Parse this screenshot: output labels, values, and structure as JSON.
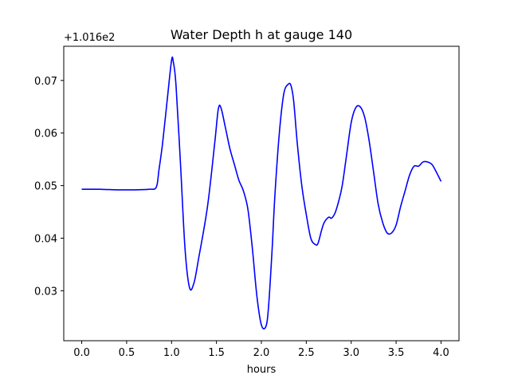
{
  "chart_data": {
    "type": "line",
    "title": "Water Depth h at gauge 140",
    "xlabel": "hours",
    "ylabel": "",
    "offset_label": "+1.016e2",
    "xlim": [
      -0.2,
      4.2
    ],
    "ylim": [
      0.0205,
      0.0765
    ],
    "xticks": [
      0.0,
      0.5,
      1.0,
      1.5,
      2.0,
      2.5,
      3.0,
      3.5,
      4.0
    ],
    "xtick_labels": [
      "0.0",
      "0.5",
      "1.0",
      "1.5",
      "2.0",
      "2.5",
      "3.0",
      "3.5",
      "4.0"
    ],
    "yticks": [
      0.03,
      0.04,
      0.05,
      0.06,
      0.07
    ],
    "ytick_labels": [
      "0.03",
      "0.04",
      "0.05",
      "0.06",
      "0.07"
    ],
    "grid": false,
    "series": [
      {
        "color": "#0000ff",
        "x": [
          0.0,
          0.2,
          0.4,
          0.6,
          0.75,
          0.83,
          0.86,
          0.9,
          0.95,
          1.0,
          1.02,
          1.05,
          1.1,
          1.15,
          1.2,
          1.25,
          1.3,
          1.4,
          1.48,
          1.52,
          1.55,
          1.6,
          1.65,
          1.7,
          1.75,
          1.8,
          1.85,
          1.9,
          1.95,
          2.0,
          2.05,
          2.08,
          2.12,
          2.15,
          2.2,
          2.25,
          2.3,
          2.33,
          2.36,
          2.4,
          2.45,
          2.5,
          2.55,
          2.6,
          2.63,
          2.67,
          2.7,
          2.75,
          2.78,
          2.82,
          2.86,
          2.9,
          2.95,
          3.0,
          3.05,
          3.1,
          3.15,
          3.2,
          3.25,
          3.3,
          3.35,
          3.4,
          3.45,
          3.5,
          3.55,
          3.6,
          3.65,
          3.7,
          3.75,
          3.8,
          3.85,
          3.9,
          3.95,
          4.0
        ],
        "y": [
          0.0493,
          0.0493,
          0.0492,
          0.0492,
          0.0493,
          0.0497,
          0.053,
          0.058,
          0.066,
          0.0738,
          0.0735,
          0.069,
          0.054,
          0.038,
          0.0306,
          0.0315,
          0.036,
          0.046,
          0.058,
          0.0645,
          0.0648,
          0.061,
          0.057,
          0.054,
          0.051,
          0.049,
          0.0455,
          0.038,
          0.029,
          0.0235,
          0.0232,
          0.027,
          0.038,
          0.048,
          0.06,
          0.0675,
          0.0693,
          0.069,
          0.066,
          0.058,
          0.05,
          0.0445,
          0.04,
          0.0388,
          0.039,
          0.0415,
          0.043,
          0.044,
          0.0438,
          0.0448,
          0.047,
          0.05,
          0.056,
          0.062,
          0.0648,
          0.065,
          0.063,
          0.0585,
          0.0525,
          0.0465,
          0.043,
          0.041,
          0.041,
          0.0425,
          0.046,
          0.049,
          0.052,
          0.0537,
          0.0537,
          0.0545,
          0.0545,
          0.054,
          0.0525,
          0.0508
        ]
      }
    ]
  }
}
